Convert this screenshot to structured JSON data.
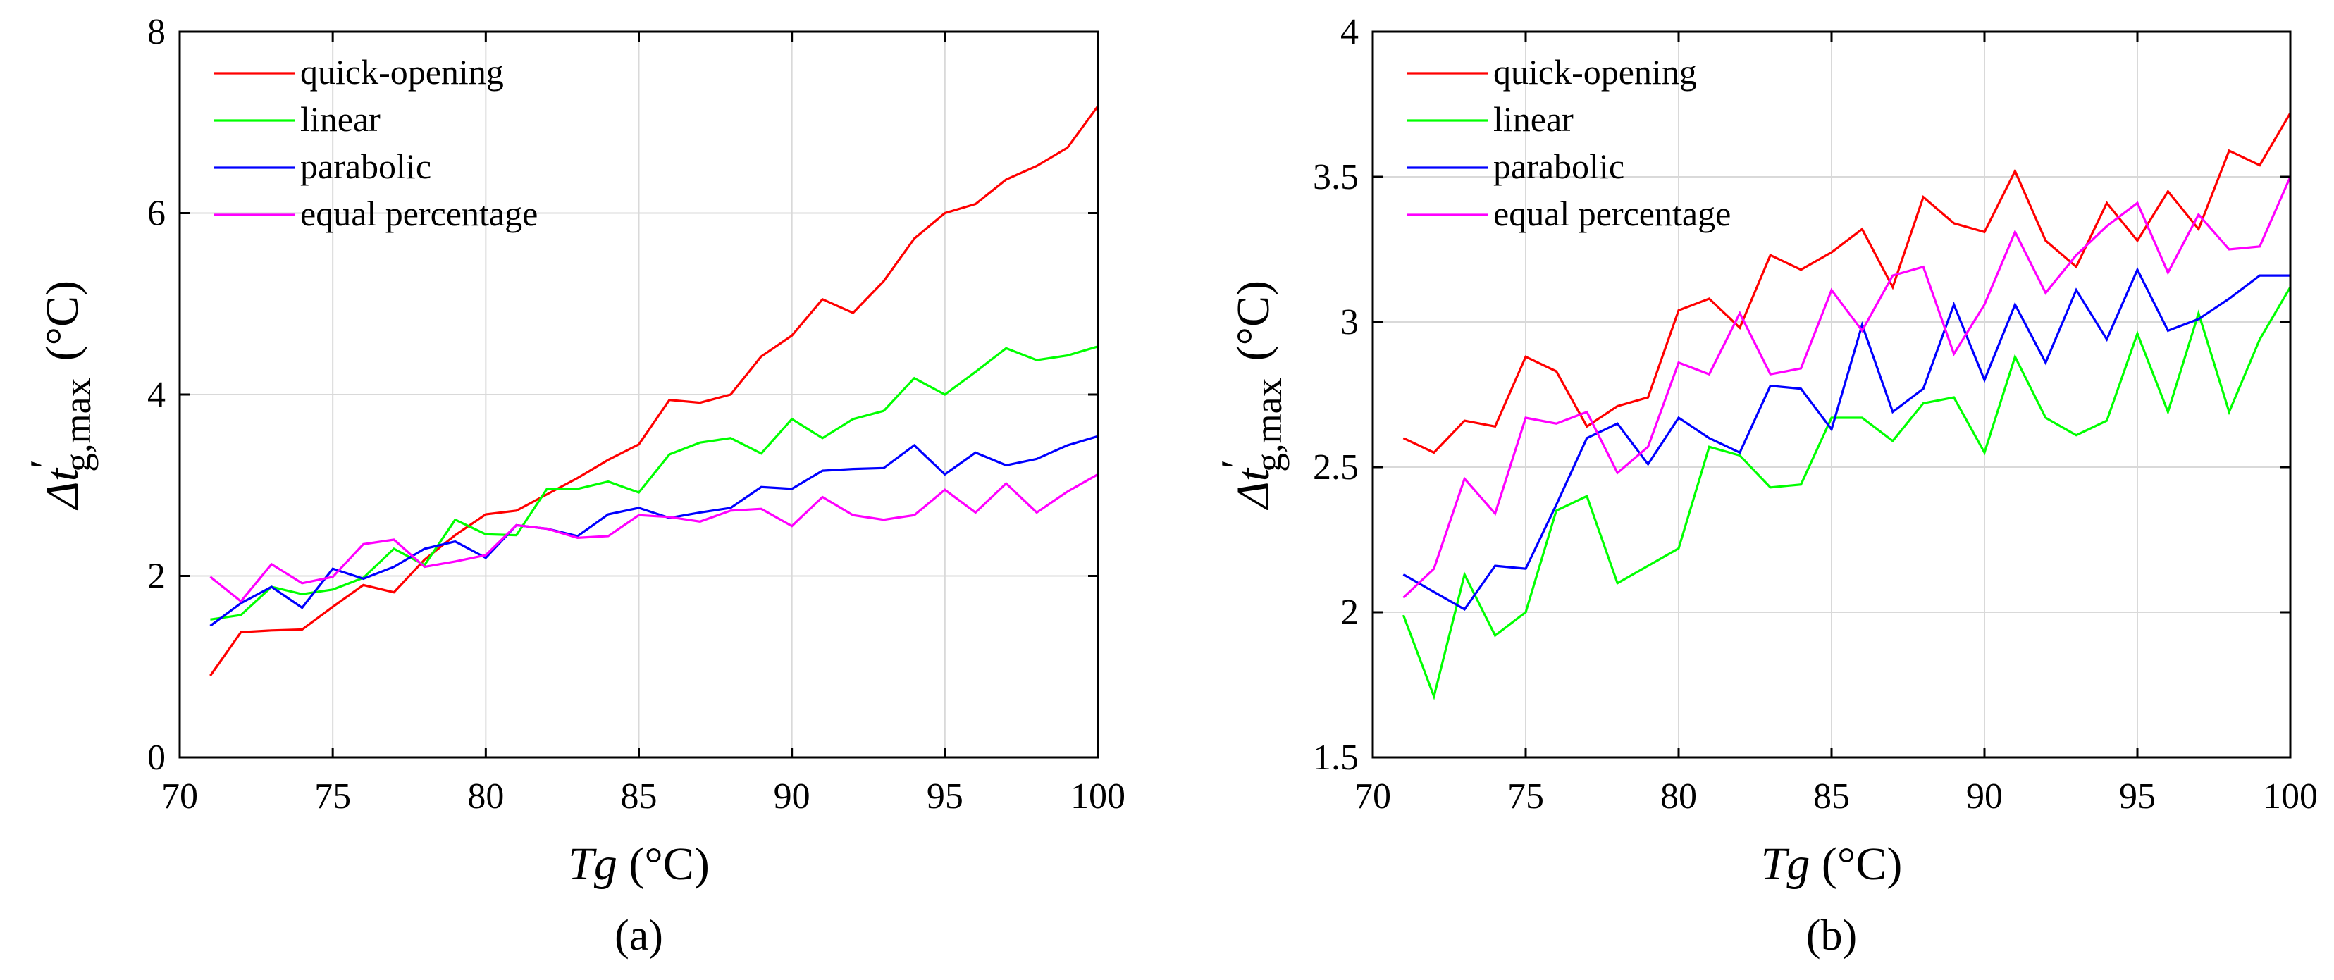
{
  "figure": {
    "title": "",
    "x_unit_label": "Tg (°C)"
  },
  "colors": {
    "quick-opening": "#ff0000",
    "linear": "#00ff00",
    "parabolic": "#0000ff",
    "equal percentage": "#ff00ff"
  },
  "chart_data": [
    {
      "type": "line",
      "panel_label": "(a)",
      "title": "",
      "xlabel_italic": "Tg",
      "xlabel_unit": " (°C)",
      "ylabel_italic": "Δt",
      "ylabel_sub": "g,max",
      "ylabel_prime": "′",
      "ylabel_unit": "(°C)",
      "xlim": [
        70,
        100
      ],
      "ylim": [
        0,
        8
      ],
      "xticks": [
        70,
        75,
        80,
        85,
        90,
        95,
        100
      ],
      "yticks": [
        0,
        2,
        4,
        6,
        8
      ],
      "grid": true,
      "legend_position": "top-left",
      "x": [
        71,
        72,
        73,
        74,
        75,
        76,
        77,
        78,
        79,
        80,
        81,
        82,
        83,
        84,
        85,
        86,
        87,
        88,
        89,
        90,
        91,
        92,
        93,
        94,
        95,
        96,
        97,
        98,
        99,
        100
      ],
      "series": [
        {
          "name": "quick-opening",
          "values": [
            0.9,
            1.38,
            1.4,
            1.41,
            1.66,
            1.9,
            1.82,
            2.18,
            2.45,
            2.68,
            2.72,
            2.9,
            3.08,
            3.28,
            3.45,
            3.94,
            3.91,
            4.0,
            4.42,
            4.65,
            5.05,
            4.9,
            5.25,
            5.72,
            6.0,
            6.1,
            6.37,
            6.52,
            6.72,
            7.18
          ]
        },
        {
          "name": "linear",
          "values": [
            1.52,
            1.57,
            1.88,
            1.8,
            1.85,
            1.98,
            2.3,
            2.12,
            2.62,
            2.46,
            2.45,
            2.96,
            2.96,
            3.04,
            2.92,
            3.34,
            3.47,
            3.52,
            3.35,
            3.73,
            3.52,
            3.73,
            3.82,
            4.18,
            4.0,
            4.25,
            4.51,
            4.38,
            4.43,
            4.53
          ]
        },
        {
          "name": "parabolic",
          "values": [
            1.45,
            1.7,
            1.88,
            1.65,
            2.08,
            1.97,
            2.1,
            2.3,
            2.38,
            2.2,
            2.56,
            2.52,
            2.44,
            2.68,
            2.75,
            2.64,
            2.7,
            2.75,
            2.98,
            2.96,
            3.16,
            3.18,
            3.19,
            3.44,
            3.12,
            3.36,
            3.22,
            3.29,
            3.44,
            3.54
          ]
        },
        {
          "name": "equal percentage",
          "values": [
            1.99,
            1.72,
            2.13,
            1.92,
            1.99,
            2.35,
            2.4,
            2.1,
            2.16,
            2.23,
            2.56,
            2.52,
            2.42,
            2.44,
            2.67,
            2.65,
            2.6,
            2.72,
            2.74,
            2.55,
            2.87,
            2.67,
            2.62,
            2.67,
            2.95,
            2.7,
            3.02,
            2.7,
            2.93,
            3.12
          ]
        }
      ]
    },
    {
      "type": "line",
      "panel_label": "(b)",
      "title": "",
      "xlabel_italic": "Tg",
      "xlabel_unit": " (°C)",
      "ylabel_italic": "Δt",
      "ylabel_sub": "g,max",
      "ylabel_prime": "′",
      "ylabel_unit": "(°C)",
      "xlim": [
        70,
        100
      ],
      "ylim": [
        1.5,
        4
      ],
      "xticks": [
        70,
        75,
        80,
        85,
        90,
        95,
        100
      ],
      "yticks": [
        1.5,
        2,
        2.5,
        3,
        3.5,
        4
      ],
      "grid": true,
      "legend_position": "top-left",
      "x": [
        71,
        72,
        73,
        74,
        75,
        76,
        77,
        78,
        79,
        80,
        81,
        82,
        83,
        84,
        85,
        86,
        87,
        88,
        89,
        90,
        91,
        92,
        93,
        94,
        95,
        96,
        97,
        98,
        99,
        100
      ],
      "series": [
        {
          "name": "quick-opening",
          "values": [
            2.6,
            2.55,
            2.66,
            2.64,
            2.88,
            2.83,
            2.64,
            2.71,
            2.74,
            3.04,
            3.08,
            2.98,
            3.23,
            3.18,
            3.24,
            3.32,
            3.12,
            3.43,
            3.34,
            3.31,
            3.52,
            3.28,
            3.19,
            3.41,
            3.28,
            3.45,
            3.32,
            3.59,
            3.54,
            3.72
          ]
        },
        {
          "name": "linear",
          "values": [
            1.99,
            1.71,
            2.13,
            1.92,
            2.0,
            2.35,
            2.4,
            2.1,
            2.16,
            2.22,
            2.57,
            2.54,
            2.43,
            2.44,
            2.67,
            2.67,
            2.59,
            2.72,
            2.74,
            2.55,
            2.88,
            2.67,
            2.61,
            2.66,
            2.96,
            2.69,
            3.03,
            2.69,
            2.94,
            3.12
          ]
        },
        {
          "name": "parabolic",
          "values": [
            2.13,
            2.07,
            2.01,
            2.16,
            2.15,
            2.37,
            2.6,
            2.65,
            2.51,
            2.67,
            2.6,
            2.55,
            2.78,
            2.77,
            2.63,
            2.99,
            2.69,
            2.77,
            3.06,
            2.8,
            3.06,
            2.86,
            3.11,
            2.94,
            3.18,
            2.97,
            3.01,
            3.08,
            3.16,
            3.16
          ]
        },
        {
          "name": "equal percentage",
          "values": [
            2.05,
            2.15,
            2.46,
            2.34,
            2.67,
            2.65,
            2.69,
            2.48,
            2.57,
            2.86,
            2.82,
            3.03,
            2.82,
            2.84,
            3.11,
            2.97,
            3.16,
            3.19,
            2.89,
            3.06,
            3.31,
            3.1,
            3.23,
            3.33,
            3.41,
            3.17,
            3.37,
            3.25,
            3.26,
            3.5
          ]
        }
      ]
    }
  ]
}
